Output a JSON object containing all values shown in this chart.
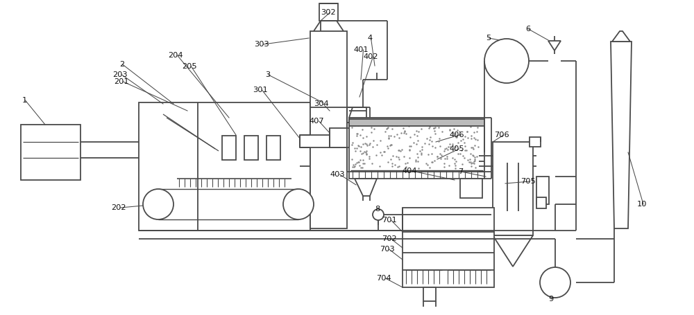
{
  "bg_color": "#ffffff",
  "line_color": "#4a4a4a",
  "lw": 1.3,
  "fig_width": 10.0,
  "fig_height": 4.55,
  "dpi": 100
}
